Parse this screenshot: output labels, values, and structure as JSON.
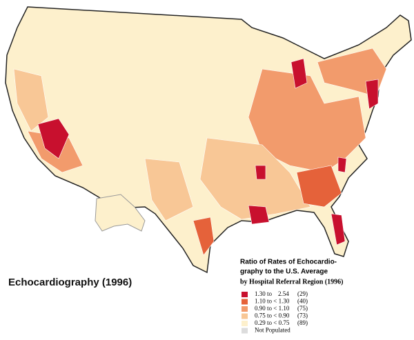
{
  "title": "Echocardiography (1996)",
  "legend": {
    "title_lines": [
      "Ratio of Rates of Echocardio-",
      "graphy to the U.S. Average"
    ],
    "subtitle": "by Hospital Referral Region (1996)",
    "items": [
      {
        "label": "1.30 to    2.54",
        "count": "(29)",
        "color": "#c8102e"
      },
      {
        "label": "1.10 to < 1.30",
        "count": "(40)",
        "color": "#e5623a"
      },
      {
        "label": "0.90 to < 1.10",
        "count": "(75)",
        "color": "#f29b6c"
      },
      {
        "label": "0.75 to < 0.90",
        "count": "(73)",
        "color": "#f8c796"
      },
      {
        "label": "0.29 to < 0.75",
        "count": "(89)",
        "color": "#fdf0cc"
      },
      {
        "label": "Not Populated",
        "count": null,
        "color": "#dcdcdc"
      }
    ]
  }
}
